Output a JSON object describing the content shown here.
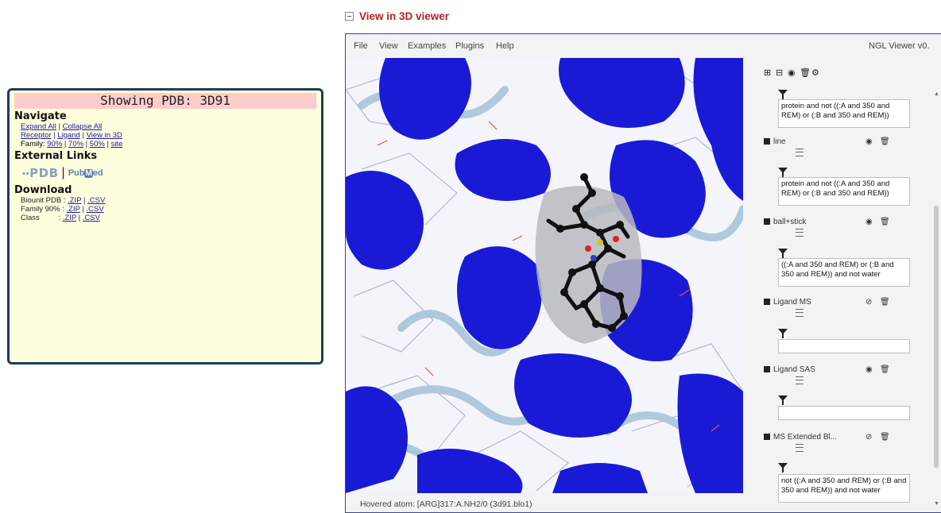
{
  "info_panel": {
    "title": "Showing PDB: 3D91",
    "navigate": {
      "heading": "Navigate",
      "expand_all": "Expand All",
      "collapse_all": "Collapse All",
      "receptor": "Receptor",
      "ligand": "Ligand",
      "view_in_3d": "View in 3D",
      "family_label": "Family:",
      "family_90": "90%",
      "family_70": "70%",
      "family_50": "50%",
      "family_site": "site"
    },
    "external_links": {
      "heading": "External Links",
      "pdb_logo": "PDB",
      "pubmed_logo_left": "Pub",
      "pubmed_logo_m": "M",
      "pubmed_logo_right": "ed"
    },
    "download": {
      "heading": "Download",
      "rows": [
        {
          "label": "Biounit PDB :",
          "zip": ".ZIP",
          "csv": ".CSV"
        },
        {
          "label": "Family 90% :",
          "zip": ".ZIP",
          "csv": ".CSV"
        },
        {
          "label": "Class         :",
          "zip": ".ZIP",
          "csv": ".CSV"
        }
      ]
    }
  },
  "viewer_section": {
    "title": "View in 3D viewer"
  },
  "viewer": {
    "menu": [
      "File",
      "View",
      "Examples",
      "Plugins",
      "Help"
    ],
    "brand": "NGL Viewer v0.",
    "status": "Hovered atom: [ARG]317:A.NH2/0 (3d91.blo1)"
  },
  "sidebar": {
    "top_filter": "protein and not ((:A and 350 and REM) or (:B and 350 and REM))",
    "components": [
      {
        "name": "line",
        "filter": "protein and not ((:A and 350 and REM) or (:B and 350 and REM))"
      },
      {
        "name": "ball+stick",
        "filter": "((:A and 350 and REM) or (:B and 350 and REM)) and not water"
      },
      {
        "name": "Ligand MS",
        "filter": ""
      },
      {
        "name": "Ligand SAS",
        "filter": ""
      },
      {
        "name": "MS Extended Bl...",
        "filter": "not ((:A and 350 and REM) or (:B and 350 and REM)) and not water"
      }
    ]
  },
  "colors": {
    "panel_bg": "#ffffde",
    "panel_border": "#1f3d57",
    "title_band": "#ffcccc",
    "link": "#1a1aa6",
    "surface_blue": "#1a1ad6",
    "section_title": "#b22222"
  }
}
